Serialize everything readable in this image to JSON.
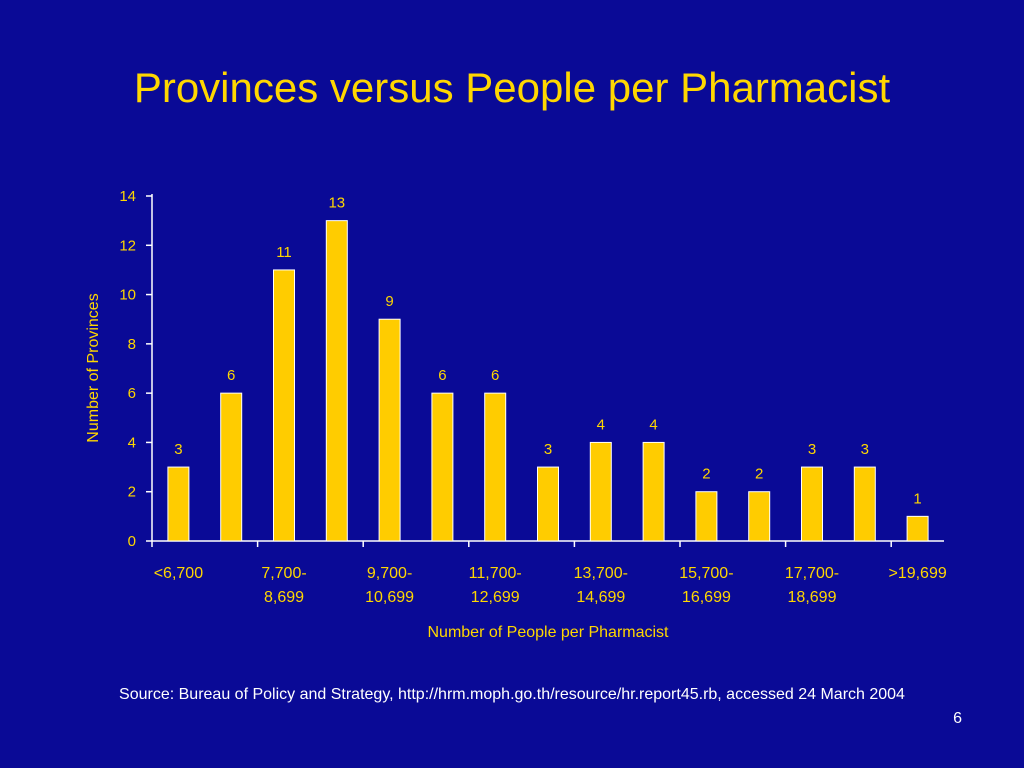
{
  "slide": {
    "title": "Provinces versus People per Pharmacist",
    "source": "Source: Bureau of Policy and Strategy, http://hrm.moph.go.th/resource/hr.report45.rb, accessed 24 March 2004",
    "page_number": "6"
  },
  "colors": {
    "background": "#0a0a96",
    "text": "#ffd700",
    "bar": "#ffcc00",
    "axis": "#ffffff"
  },
  "chart_data": {
    "type": "bar",
    "xlabel": "Number of People per Pharmacist",
    "ylabel": "Number of Provinces",
    "ylim": [
      0,
      14
    ],
    "yticks": [
      0,
      2,
      4,
      6,
      8,
      10,
      12,
      14
    ],
    "values": [
      3,
      6,
      11,
      13,
      9,
      6,
      6,
      3,
      4,
      4,
      2,
      2,
      3,
      3,
      1
    ],
    "tick_labels": [
      [
        "<6,700"
      ],
      [
        "7,700-",
        "8,699"
      ],
      [
        "9,700-",
        "10,699"
      ],
      [
        "11,700-",
        "12,699"
      ],
      [
        "13,700-",
        "14,699"
      ],
      [
        "15,700-",
        "16,699"
      ],
      [
        "17,700-",
        "18,699"
      ],
      [
        ">19,699"
      ]
    ],
    "grid": false,
    "legend": "none"
  }
}
